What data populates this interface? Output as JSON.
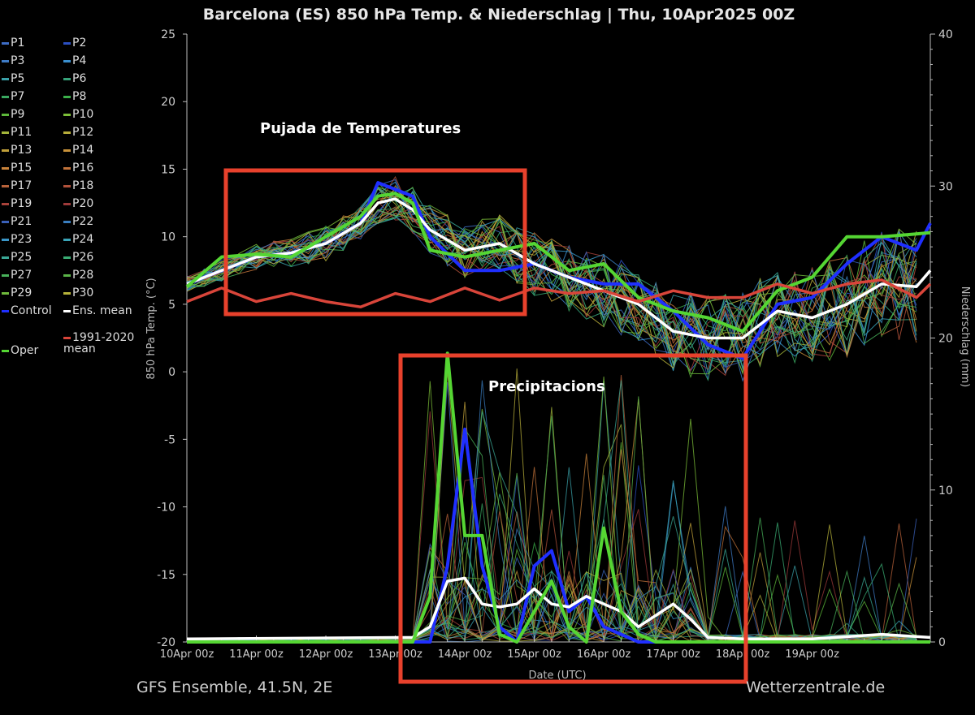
{
  "title": "Barcelona  (ES)  850 hPa Temp. & Niederschlag | Thu, 10Apr2025 00Z",
  "footer_left": "GFS Ensemble, 41.5N, 2E",
  "footer_right": "Wetterzentrale.de",
  "annotations": [
    {
      "text": "Pujada de Temperatures",
      "color": "#ffffff"
    },
    {
      "text": "Precipitacions",
      "color": "#ffffff"
    }
  ],
  "colors": {
    "background": "#000000",
    "axis": "#bbbbbb",
    "annotation_box": "#e8412c",
    "control": "#1f2fff",
    "ens_mean": "#ffffff",
    "oper": "#55d633",
    "climate_mean": "#d9453a"
  },
  "legend": [
    {
      "label": "P1",
      "color": "#3d6cc4"
    },
    {
      "label": "P2",
      "color": "#2b4fc2"
    },
    {
      "label": "P3",
      "color": "#3e7bc6"
    },
    {
      "label": "P4",
      "color": "#3a8fcf"
    },
    {
      "label": "P5",
      "color": "#3aa0a8"
    },
    {
      "label": "P6",
      "color": "#36a37a"
    },
    {
      "label": "P7",
      "color": "#3aa860"
    },
    {
      "label": "P8",
      "color": "#3bb04a"
    },
    {
      "label": "P9",
      "color": "#5db83a"
    },
    {
      "label": "P10",
      "color": "#7cbf38"
    },
    {
      "label": "P11",
      "color": "#a3b53a"
    },
    {
      "label": "P12",
      "color": "#b7ad3a"
    },
    {
      "label": "P13",
      "color": "#c2a13a"
    },
    {
      "label": "P14",
      "color": "#c9923a"
    },
    {
      "label": "P15",
      "color": "#c9833a"
    },
    {
      "label": "P16",
      "color": "#c2733a"
    },
    {
      "label": "P17",
      "color": "#b8623a"
    },
    {
      "label": "P18",
      "color": "#b0513a"
    },
    {
      "label": "P19",
      "color": "#a8423a"
    },
    {
      "label": "P20",
      "color": "#9e3a3a"
    },
    {
      "label": "P21",
      "color": "#3a60b8"
    },
    {
      "label": "P22",
      "color": "#3a7ec0"
    },
    {
      "label": "P23",
      "color": "#3a96c8"
    },
    {
      "label": "P24",
      "color": "#3aa5b8"
    },
    {
      "label": "P25",
      "color": "#3aa896"
    },
    {
      "label": "P26",
      "color": "#3aad74"
    },
    {
      "label": "P27",
      "color": "#48b25a"
    },
    {
      "label": "P28",
      "color": "#5ab448"
    },
    {
      "label": "P29",
      "color": "#6fba3c"
    },
    {
      "label": "P30",
      "color": "#b6b23a"
    },
    {
      "label": "Control",
      "color": "#1f2fff"
    },
    {
      "label": "Ens. mean",
      "color": "#ffffff"
    },
    {
      "label": "1991-2020 mean",
      "color": "#d9453a"
    },
    {
      "label": "Oper",
      "color": "#55d633"
    }
  ],
  "chart_data": {
    "type": "line",
    "title": "Barcelona  (ES)  850 hPa Temp. & Niederschlag | Thu, 10Apr2025 00Z",
    "xlabel": "Date (UTC)",
    "ylabel": "850 hPa Temp. (°C)",
    "y2label": "Niederschlag (mm)",
    "x_ticks": [
      "10Apr 00z",
      "11Apr 00z",
      "12Apr 00z",
      "13Apr 00z",
      "14Apr 00z",
      "15Apr 00z",
      "16Apr 00z",
      "17Apr 00z",
      "18Apr 00z",
      "19Apr 00z"
    ],
    "x_range_days": [
      0,
      10.7
    ],
    "ylim": [
      -20,
      25
    ],
    "y_ticks": [
      25,
      20,
      15,
      10,
      5,
      0,
      -5,
      -10,
      -15,
      -20
    ],
    "y2lim": [
      0,
      40
    ],
    "y2_ticks": [
      40,
      30,
      20,
      10,
      0
    ],
    "grid": false,
    "temperature_series": [
      {
        "name": "Control",
        "x": [
          0,
          0.5,
          1,
          1.5,
          2,
          2.5,
          2.75,
          3,
          3.25,
          3.5,
          4,
          4.5,
          5,
          5.5,
          6,
          6.5,
          7,
          7.5,
          8,
          8.5,
          9,
          9.5,
          10,
          10.5,
          10.7
        ],
        "y": [
          6.5,
          7.5,
          8.5,
          8.8,
          9.5,
          11,
          14,
          13.5,
          13,
          10,
          7.5,
          7.5,
          8,
          7,
          6.5,
          6.5,
          4.5,
          2,
          1,
          5,
          5.5,
          8,
          10,
          9,
          11
        ]
      },
      {
        "name": "Ens. mean",
        "x": [
          0,
          0.5,
          1,
          1.5,
          2,
          2.5,
          2.75,
          3,
          3.25,
          3.5,
          4,
          4.5,
          5,
          5.5,
          6,
          6.5,
          7,
          7.5,
          8,
          8.5,
          9,
          9.5,
          10,
          10.5,
          10.7
        ],
        "y": [
          6.5,
          7.5,
          8.5,
          8.8,
          9.5,
          11,
          12.5,
          12.8,
          12,
          10.5,
          9,
          9.5,
          8,
          7,
          6,
          5,
          3,
          2.5,
          2.5,
          4.5,
          4,
          5,
          6.5,
          6.3,
          7.5
        ]
      },
      {
        "name": "Oper",
        "x": [
          0,
          0.5,
          1,
          1.5,
          2,
          2.5,
          2.75,
          3,
          3.25,
          3.5,
          4,
          4.5,
          5,
          5.5,
          6,
          6.5,
          7,
          7.5,
          8,
          8.5,
          9,
          9.5,
          10,
          10.5,
          10.7
        ],
        "y": [
          6.3,
          8.5,
          8.7,
          8.5,
          10,
          11.5,
          13,
          13.2,
          12.5,
          9,
          8.5,
          9,
          9.5,
          7.5,
          8,
          5.5,
          4.5,
          4,
          3,
          6,
          7,
          10,
          10,
          10.2,
          10.3
        ]
      },
      {
        "name": "1991-2020 mean",
        "x": [
          0,
          0.5,
          1,
          1.5,
          2,
          2.5,
          3,
          3.5,
          4,
          4.5,
          5,
          5.5,
          6,
          6.5,
          7,
          7.5,
          8,
          8.5,
          9,
          9.5,
          10,
          10.5,
          10.7
        ],
        "y": [
          5.2,
          6.2,
          5.2,
          5.8,
          5.2,
          4.8,
          5.8,
          5.2,
          6.2,
          5.3,
          6.2,
          5.8,
          6.0,
          5.2,
          6.0,
          5.5,
          5.5,
          6.5,
          5.8,
          6.5,
          6.8,
          5.5,
          6.5
        ]
      }
    ],
    "precipitation_series": [
      {
        "name": "Control",
        "x": [
          0,
          3.5,
          3.75,
          4,
          4.25,
          4.5,
          4.75,
          5,
          5.25,
          5.5,
          5.75,
          6,
          6.5,
          7,
          7.5,
          8,
          10.7
        ],
        "y": [
          0,
          0,
          5,
          14,
          5,
          1,
          0,
          5,
          6,
          2,
          3,
          1,
          0,
          0,
          0,
          0,
          0
        ]
      },
      {
        "name": "Ens. mean",
        "x": [
          0,
          3.25,
          3.5,
          3.75,
          4,
          4.25,
          4.5,
          4.75,
          5,
          5.25,
          5.5,
          5.75,
          6,
          6.25,
          6.5,
          7,
          7.25,
          7.5,
          8,
          9,
          10,
          10.7
        ],
        "y": [
          0.2,
          0.3,
          1,
          4,
          4.2,
          2.5,
          2.3,
          2.5,
          3.5,
          2.5,
          2.3,
          3,
          2.5,
          2,
          1,
          2.5,
          1.5,
          0.3,
          0.2,
          0.2,
          0.5,
          0.3
        ]
      },
      {
        "name": "Oper",
        "x": [
          0,
          3.25,
          3.5,
          3.75,
          4,
          4.25,
          4.5,
          4.75,
          5,
          5.25,
          5.5,
          5.75,
          6,
          6.25,
          6.5,
          6.75,
          7,
          7.5,
          8,
          10.7
        ],
        "y": [
          0,
          0,
          3,
          19,
          7,
          7,
          0.5,
          0,
          2,
          4,
          1,
          0,
          7.5,
          2,
          0.5,
          0,
          0,
          0,
          0,
          0
        ]
      }
    ]
  }
}
